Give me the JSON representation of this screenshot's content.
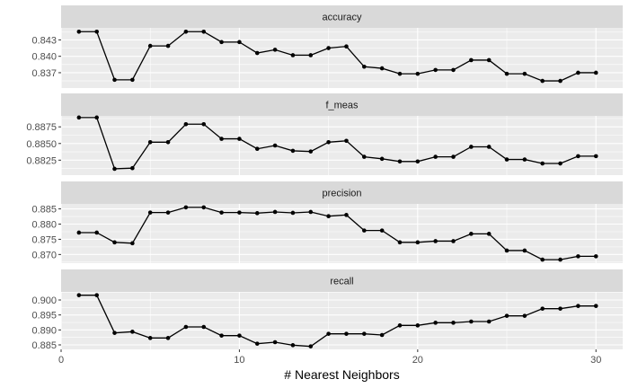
{
  "chart_data": {
    "type": "line",
    "xlabel": "# Nearest Neighbors",
    "ylabel": "",
    "xlim": [
      0,
      31.5
    ],
    "xticks": [
      0,
      10,
      20,
      30
    ],
    "x": [
      1,
      2,
      3,
      4,
      5,
      6,
      7,
      8,
      9,
      10,
      11,
      12,
      13,
      14,
      15,
      16,
      17,
      18,
      19,
      20,
      21,
      22,
      23,
      24,
      25,
      26,
      27,
      28,
      29,
      30
    ],
    "facets": [
      {
        "name": "accuracy",
        "ylim": [
          0.8342,
          0.8452
        ],
        "yticks": [
          0.837,
          0.84,
          0.843
        ],
        "ytick_labels": [
          "0.837",
          "0.840",
          "0.843"
        ],
        "values": [
          0.8445,
          0.8445,
          0.8357,
          0.8357,
          0.8419,
          0.8419,
          0.8445,
          0.8445,
          0.8426,
          0.8426,
          0.8406,
          0.8412,
          0.8402,
          0.8402,
          0.8415,
          0.8418,
          0.8381,
          0.8378,
          0.8368,
          0.8368,
          0.8375,
          0.8375,
          0.8393,
          0.8393,
          0.8368,
          0.8368,
          0.8355,
          0.8355,
          0.837,
          0.837
        ]
      },
      {
        "name": "f_meas",
        "ylim": [
          0.88025,
          0.88915
        ],
        "yticks": [
          0.8825,
          0.885,
          0.8875
        ],
        "ytick_labels": [
          "0.8825",
          "0.8850",
          "0.8875"
        ],
        "values": [
          0.8889,
          0.8889,
          0.8812,
          0.8813,
          0.8852,
          0.8852,
          0.8879,
          0.8879,
          0.8857,
          0.8857,
          0.8842,
          0.8847,
          0.8839,
          0.8838,
          0.8852,
          0.8854,
          0.883,
          0.8827,
          0.8823,
          0.8823,
          0.883,
          0.883,
          0.8845,
          0.8845,
          0.8826,
          0.8826,
          0.882,
          0.882,
          0.8831,
          0.8831
        ]
      },
      {
        "name": "precision",
        "ylim": [
          0.86715,
          0.88665
        ],
        "yticks": [
          0.87,
          0.875,
          0.88,
          0.885
        ],
        "ytick_labels": [
          "0.870",
          "0.875",
          "0.880",
          "0.885"
        ],
        "values": [
          0.8772,
          0.8772,
          0.874,
          0.8737,
          0.8838,
          0.8838,
          0.8855,
          0.8855,
          0.8838,
          0.8838,
          0.8836,
          0.884,
          0.8837,
          0.884,
          0.8826,
          0.883,
          0.8779,
          0.8779,
          0.874,
          0.874,
          0.8744,
          0.8744,
          0.8768,
          0.8768,
          0.8713,
          0.8713,
          0.8683,
          0.8683,
          0.8694,
          0.8694
        ]
      },
      {
        "name": "recall",
        "ylim": [
          0.8835,
          0.9027
        ],
        "yticks": [
          0.885,
          0.89,
          0.895,
          0.9
        ],
        "ytick_labels": [
          "0.885",
          "0.890",
          "0.895",
          "0.900"
        ],
        "values": [
          0.9016,
          0.9016,
          0.889,
          0.8894,
          0.8873,
          0.8873,
          0.891,
          0.891,
          0.8881,
          0.8881,
          0.8854,
          0.8859,
          0.8849,
          0.8845,
          0.8887,
          0.8887,
          0.8887,
          0.8883,
          0.8915,
          0.8915,
          0.8924,
          0.8924,
          0.8928,
          0.8928,
          0.8947,
          0.8947,
          0.8971,
          0.8971,
          0.898,
          0.898
        ]
      }
    ]
  }
}
